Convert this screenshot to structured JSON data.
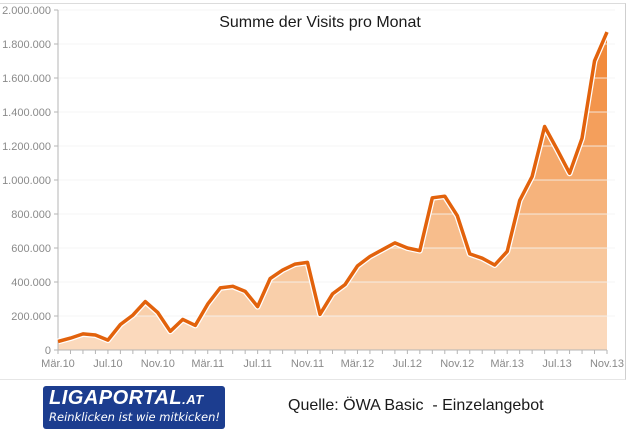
{
  "chart_data": {
    "type": "area",
    "title": "Summe der Visits pro Monat",
    "xlabel": "",
    "ylabel": "",
    "ylim": [
      0,
      2000000
    ],
    "grid": true,
    "legend": null,
    "y_ticks": [
      "0",
      "200.000",
      "400.000",
      "600.000",
      "800.000",
      "1.000.000",
      "1.200.000",
      "1.400.000",
      "1.600.000",
      "1.800.000",
      "2.000.000"
    ],
    "x_tick_labels": [
      "Mär.10",
      "Jul.10",
      "Nov.10",
      "Mär.11",
      "Jul.11",
      "Nov.11",
      "Mär.12",
      "Jul.12",
      "Nov.12",
      "Mär.13",
      "Jul.13",
      "Nov.13"
    ],
    "categories": [
      "Mär.10",
      "Apr.10",
      "Mai.10",
      "Jun.10",
      "Jul.10",
      "Aug.10",
      "Sep.10",
      "Okt.10",
      "Nov.10",
      "Dez.10",
      "Jan.11",
      "Feb.11",
      "Mär.11",
      "Apr.11",
      "Mai.11",
      "Jun.11",
      "Jul.11",
      "Aug.11",
      "Sep.11",
      "Okt.11",
      "Nov.11",
      "Dez.11",
      "Jan.12",
      "Feb.12",
      "Mär.12",
      "Apr.12",
      "Mai.12",
      "Jun.12",
      "Jul.12",
      "Aug.12",
      "Sep.12",
      "Okt.12",
      "Nov.12",
      "Dez.12",
      "Jan.13",
      "Feb.13",
      "Mär.13",
      "Apr.13",
      "Mai.13",
      "Jun.13",
      "Jul.13",
      "Aug.13",
      "Sep.13",
      "Okt.13",
      "Nov.13"
    ],
    "series": [
      {
        "name": "Visits",
        "values": [
          50000,
          70000,
          95000,
          88000,
          58000,
          150000,
          205000,
          285000,
          220000,
          110000,
          180000,
          145000,
          270000,
          365000,
          375000,
          345000,
          255000,
          420000,
          470000,
          505000,
          515000,
          210000,
          330000,
          385000,
          495000,
          550000,
          590000,
          630000,
          600000,
          585000,
          895000,
          905000,
          790000,
          565000,
          540000,
          500000,
          580000,
          880000,
          1020000,
          1315000,
          1180000,
          1040000,
          1245000,
          1700000,
          1870000
        ]
      }
    ],
    "colors": {
      "line": "#E2620C",
      "bands": [
        "#FBD9BC",
        "#F9CFAA",
        "#F8C79C",
        "#F7BD8C",
        "#F6B37C",
        "#F5A96C",
        "#F49F5C",
        "#F3954C",
        "#F28B3C",
        "#F1812C"
      ]
    }
  },
  "footer": {
    "logo_main": "LIGAPORTAL",
    "logo_tld": ".AT",
    "logo_tagline": "Reinklicken ist wie mitkicken!",
    "source": "Quelle: ÖWA Basic  - Einzelangebot"
  }
}
